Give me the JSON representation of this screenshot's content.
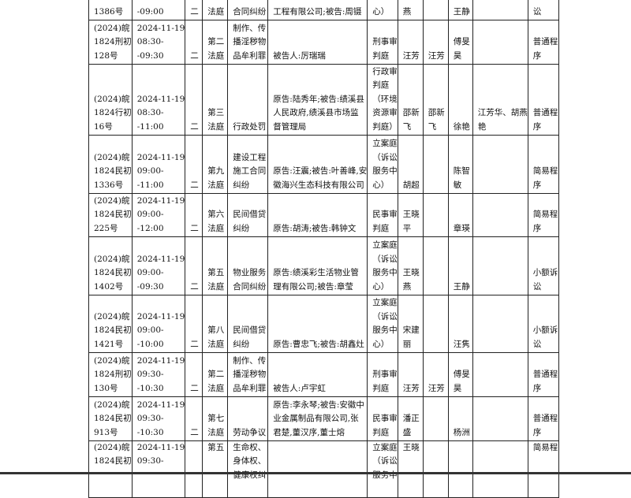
{
  "rows": [
    [
      "1386号",
      "-09:00",
      "二",
      "法庭",
      "合同纠纷",
      "工程有限公司;被告:周镊",
      "心）",
      "燕",
      "",
      "王静",
      "",
      "讼"
    ],
    [
      "(2024)皖\n1824刑初\n128号",
      "2024-11-19\n08:30-\n-09:30",
      "二",
      "第二\n法庭",
      "制作、传\n播淫秽物\n品牟利罪",
      "被告人:厉瑞瑞",
      "刑事审\n判庭",
      "汪芳",
      "汪芳",
      "傅旻\n昊",
      "",
      "普通程\n序"
    ],
    [
      "(2024)皖\n1824行初\n16号",
      "2024-11-19\n08:30-\n-11:00",
      "二",
      "第三\n法庭",
      "行政处罚",
      "原告:陆秀年;被告:绩溪县\n人民政府,绩溪县市场监\n督管理局",
      "行政审\n判庭\n（环境\n资源审\n判庭）",
      "邵新\n飞",
      "邵新\n飞",
      "徐艳",
      "江芳华、胡燕\n艳",
      "普通程\n序"
    ],
    [
      "(2024)皖\n1824民初\n1336号",
      "2024-11-19\n09:00-\n-11:00",
      "二",
      "第九\n法庭",
      "建设工程\n施工合同\n纠纷",
      "原告:汪震;被告:叶善峰,安\n徽海兴生态科技有限公司",
      "立案庭\n（诉讼\n服务中\n心）",
      "胡超",
      "",
      "陈智\n敏",
      "",
      "简易程\n序"
    ],
    [
      "(2024)皖\n1824民初\n225号",
      "2024-11-19\n09:00-\n-12:00",
      "二",
      "第六\n法庭",
      "民间借贷\n纠纷",
      "原告:胡涛;被告:韩钟文",
      "民事审\n判庭",
      "王晓\n平",
      "",
      "章瑛",
      "",
      "简易程\n序"
    ],
    [
      "(2024)皖\n1824民初\n1402号",
      "2024-11-19\n09:00-\n-09:30",
      "二",
      "第五\n法庭",
      "物业服务\n合同纠纷",
      "原告:绩溪彩生活物业管\n理有限公司;被告:章莹",
      "立案庭\n（诉讼\n服务中\n心）",
      "王晓\n燕",
      "",
      "王静",
      "",
      "小额诉\n讼"
    ],
    [
      "(2024)皖\n1824民初\n1421号",
      "2024-11-19\n09:00-\n-10:00",
      "二",
      "第八\n法庭",
      "民间借贷\n纠纷",
      "原告:曹忠飞;被告:胡鑫灶",
      "立案庭\n（诉讼\n服务中\n心）",
      "宋建\n丽",
      "",
      "汪隽",
      "",
      "小额诉\n讼"
    ],
    [
      "(2024)皖\n1824刑初\n130号",
      "2024-11-19\n09:30-\n-10:30",
      "二",
      "第二\n法庭",
      "制作、传\n播淫秽物\n品牟利罪",
      "被告人:卢宇虹",
      "刑事审\n判庭",
      "汪芳",
      "汪芳",
      "傅旻\n昊",
      "",
      "普通程\n序"
    ],
    [
      "(2024)皖\n1824民初\n913号",
      "2024-11-19\n09:30-\n-10:30",
      "二",
      "第七\n法庭",
      "劳动争议",
      "原告:李永琴;被告:安徽中\n业金属制品有限公司,张\n君楚,董汉序,董士熔",
      "民事审\n判庭",
      "潘正\n盛",
      "",
      "杨洲",
      "",
      "普通程\n序"
    ],
    [
      "(2024)皖\n1824民初\n",
      "2024-11-19\n09:30-\n",
      "",
      "第五\n",
      "生命权、\n身体权、\n健康权纠\n",
      "",
      "立案庭\n（诉讼\n服务中\n",
      "王晓\n",
      "",
      "",
      "",
      "简易程\n"
    ]
  ]
}
